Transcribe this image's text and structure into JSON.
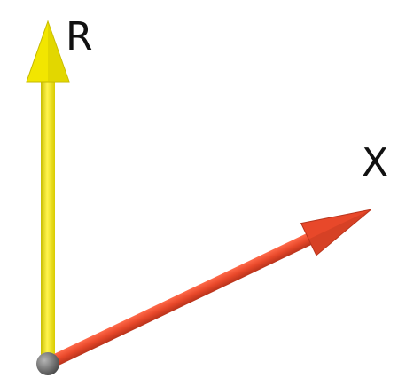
{
  "axes": {
    "vertical": {
      "label": "R",
      "color": "#f2e600"
    },
    "diagonal": {
      "label": "X",
      "color": "#e8482a"
    }
  },
  "origin": {
    "color": "#7d7d7d"
  }
}
